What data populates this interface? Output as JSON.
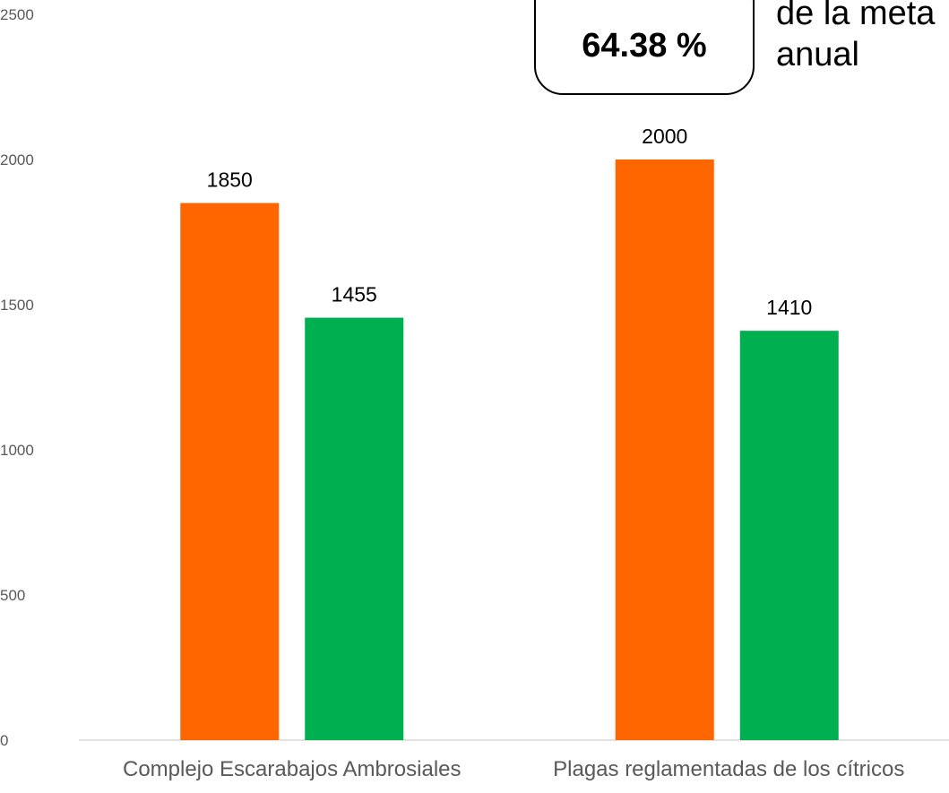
{
  "chart_data": {
    "type": "bar",
    "categories": [
      "Complejo Escarabajos Ambrosiales",
      "Plagas reglamentadas de los cítricos"
    ],
    "series": [
      {
        "color": "#ff6600",
        "values": [
          1850,
          2000
        ]
      },
      {
        "color": "#00b050",
        "values": [
          1455,
          1410
        ]
      }
    ],
    "ylim": [
      0,
      2500
    ],
    "yticks": [
      0,
      500,
      1000,
      1500,
      2000,
      2500
    ],
    "grid": false,
    "data_labels": true
  },
  "callout": {
    "value": "64.38 %",
    "text_line1": "de la meta",
    "text_line2": "anual"
  }
}
